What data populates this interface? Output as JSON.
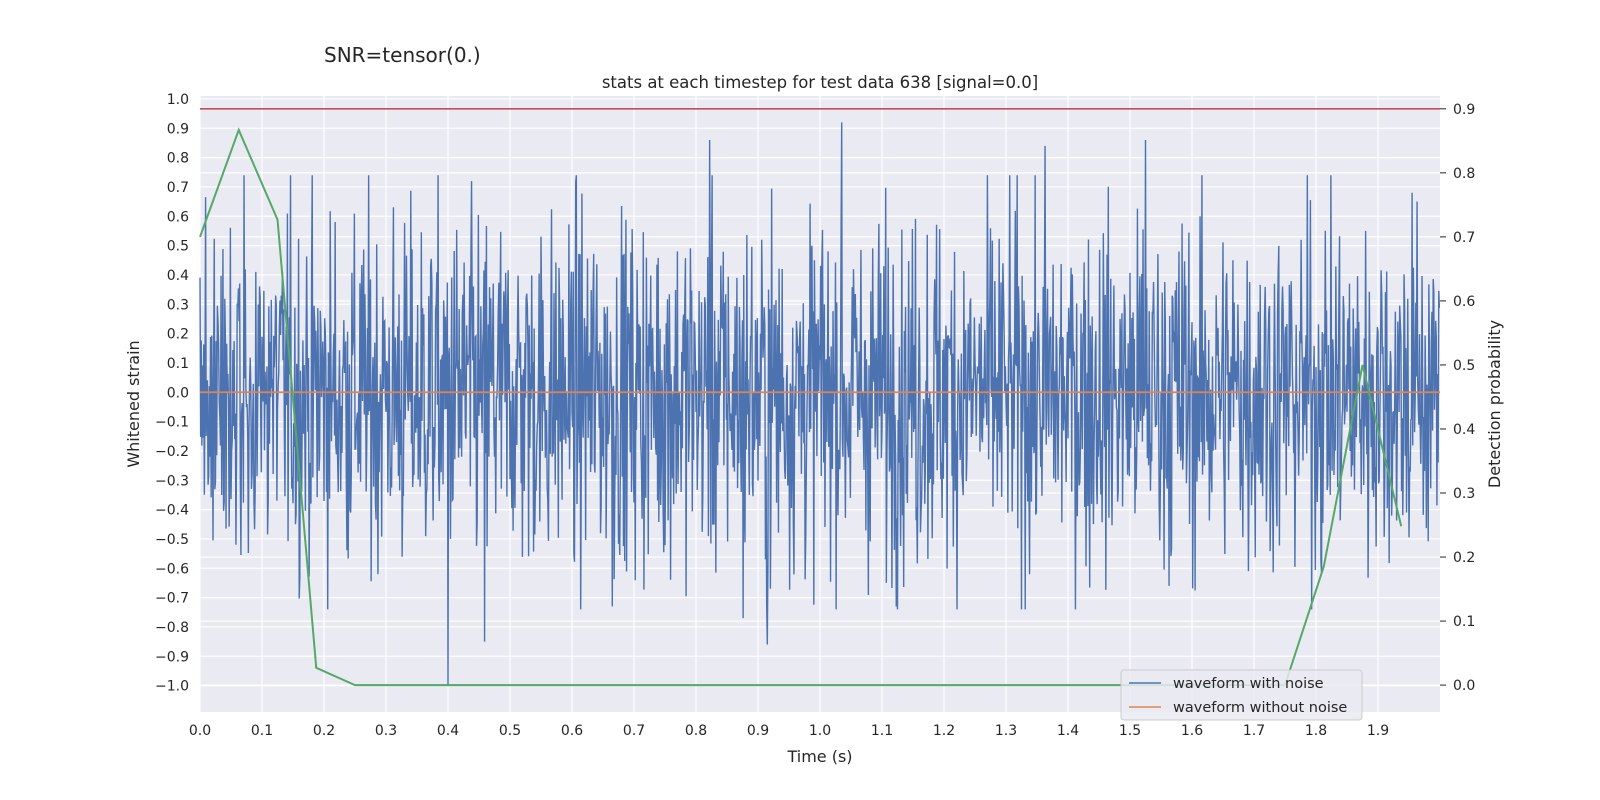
{
  "chart_data": {
    "type": "line",
    "suptitle": "SNR=tensor(0.)",
    "title": "stats at each timestep for test data 638 [signal=0.0]",
    "xlabel": "Time (s)",
    "ylabel_left": "Whitened strain",
    "ylabel_right": "Detection probability",
    "xlim": [
      0.0,
      2.0
    ],
    "ylim_left": [
      -1.09,
      1.01
    ],
    "ylim_right": [
      -0.042,
      0.92
    ],
    "grid": true,
    "x_ticks": [
      0.0,
      0.1,
      0.2,
      0.3,
      0.4,
      0.5,
      0.6,
      0.7,
      0.8,
      0.9,
      1.0,
      1.1,
      1.2,
      1.3,
      1.4,
      1.5,
      1.6,
      1.7,
      1.8,
      1.9
    ],
    "x_tick_labels": [
      "0.0",
      "0.1",
      "0.2",
      "0.3",
      "0.4",
      "0.5",
      "0.6",
      "0.7",
      "0.8",
      "0.9",
      "1.0",
      "1.1",
      "1.2",
      "1.3",
      "1.4",
      "1.5",
      "1.6",
      "1.7",
      "1.8",
      "1.9"
    ],
    "y_left_ticks": [
      1.0,
      0.9,
      0.8,
      0.7,
      0.6,
      0.5,
      0.4,
      0.3,
      0.2,
      0.1,
      0.0,
      -0.1,
      -0.2,
      -0.3,
      -0.4,
      -0.5,
      -0.6,
      -0.7,
      -0.8,
      -0.9,
      -1.0
    ],
    "y_left_tick_labels": [
      "1.0",
      "0.9",
      "0.8",
      "0.7",
      "0.6",
      "0.5",
      "0.4",
      "0.3",
      "0.2",
      "0.1",
      "0.0",
      "−0.1",
      "−0.2",
      "−0.3",
      "−0.4",
      "−0.5",
      "−0.6",
      "−0.7",
      "−0.8",
      "−0.9",
      "−1.0"
    ],
    "y_right_ticks": [
      0.9,
      0.8,
      0.7,
      0.6,
      0.5,
      0.4,
      0.3,
      0.2,
      0.1,
      0.0
    ],
    "y_right_tick_labels": [
      "0.9",
      "0.8",
      "0.7",
      "0.6",
      "0.5",
      "0.4",
      "0.3",
      "0.2",
      "0.1",
      "0.0"
    ],
    "legend_position": "lower-right",
    "series": [
      {
        "name": "waveform with noise",
        "axis": "left",
        "color": "#4c72b0",
        "style": "dense-noise",
        "sample_count": 2000,
        "x_range": [
          0.0,
          1.999
        ],
        "notable_peaks": [
          {
            "x": 0.4,
            "y": -1.0
          },
          {
            "x": 0.459,
            "y": -0.85
          },
          {
            "x": 0.665,
            "y": -0.73
          },
          {
            "x": 0.822,
            "y": 0.86
          },
          {
            "x": 0.876,
            "y": -0.77
          },
          {
            "x": 0.915,
            "y": -0.86
          },
          {
            "x": 1.035,
            "y": 0.92
          },
          {
            "x": 1.363,
            "y": 0.84
          },
          {
            "x": 1.525,
            "y": 0.86
          },
          {
            "x": 1.955,
            "y": 0.68
          }
        ]
      },
      {
        "name": "waveform without noise",
        "axis": "left",
        "color": "#dd8452",
        "style": "line",
        "x": [
          0.0,
          2.0
        ],
        "y": [
          0.0,
          0.0
        ]
      },
      {
        "name": "detection probability",
        "axis": "right",
        "color": "#55a868",
        "style": "line",
        "x": [
          0.0,
          0.0625,
          0.125,
          0.1875,
          0.25,
          0.3125,
          0.375,
          0.4375,
          0.5,
          0.5625,
          0.625,
          0.6875,
          0.75,
          0.8125,
          0.875,
          0.9375,
          1.0,
          1.0625,
          1.125,
          1.1875,
          1.25,
          1.3125,
          1.375,
          1.4375,
          1.5,
          1.5625,
          1.625,
          1.6875,
          1.75,
          1.8125,
          1.875,
          1.9375
        ],
        "y": [
          0.7,
          0.867,
          0.727,
          0.027,
          0.0,
          0.0,
          0.0,
          0.0,
          0.0,
          0.0,
          0.0,
          0.0,
          0.0,
          0.0,
          0.0,
          0.0,
          0.0,
          0.0,
          0.0,
          0.0,
          0.0,
          0.0,
          0.0,
          0.0,
          0.0,
          0.0,
          0.0,
          0.0,
          0.0,
          0.185,
          0.5,
          0.248
        ]
      },
      {
        "name": "threshold",
        "axis": "right",
        "color": "#c44e52",
        "style": "hline",
        "x": [
          0.0,
          2.0
        ],
        "y": [
          0.9,
          0.9
        ]
      }
    ],
    "legend_entries": [
      {
        "label": "waveform with noise",
        "color": "#4c72b0"
      },
      {
        "label": "waveform without noise",
        "color": "#dd8452"
      }
    ]
  }
}
